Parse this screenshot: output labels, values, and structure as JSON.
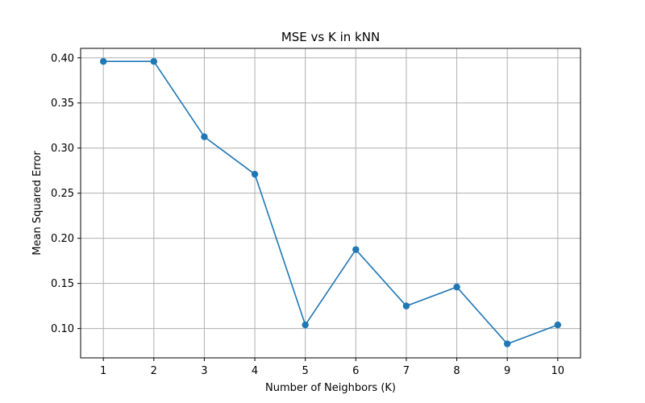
{
  "chart_data": {
    "type": "line",
    "title": "MSE vs K in kNN",
    "xlabel": "Number of Neighbors (K)",
    "ylabel": "Mean Squared Error",
    "x": [
      1,
      2,
      3,
      4,
      5,
      6,
      7,
      8,
      9,
      10
    ],
    "series": [
      {
        "values": [
          0.396,
          0.396,
          0.3125,
          0.271,
          0.104,
          0.1875,
          0.125,
          0.146,
          0.083,
          0.104
        ],
        "color": "#1f77b4",
        "marker": "circle"
      }
    ],
    "xlim": [
      0.55,
      10.45
    ],
    "ylim": [
      0.0675,
      0.4105
    ],
    "xticks": [
      1,
      2,
      3,
      4,
      5,
      6,
      7,
      8,
      9,
      10
    ],
    "xtick_labels": [
      "1",
      "2",
      "3",
      "4",
      "5",
      "6",
      "7",
      "8",
      "9",
      "10"
    ],
    "yticks": [
      0.1,
      0.15,
      0.2,
      0.25,
      0.3,
      0.35,
      0.4
    ],
    "ytick_labels": [
      "0.10",
      "0.15",
      "0.20",
      "0.25",
      "0.30",
      "0.35",
      "0.40"
    ],
    "grid": true,
    "legend": "none"
  }
}
